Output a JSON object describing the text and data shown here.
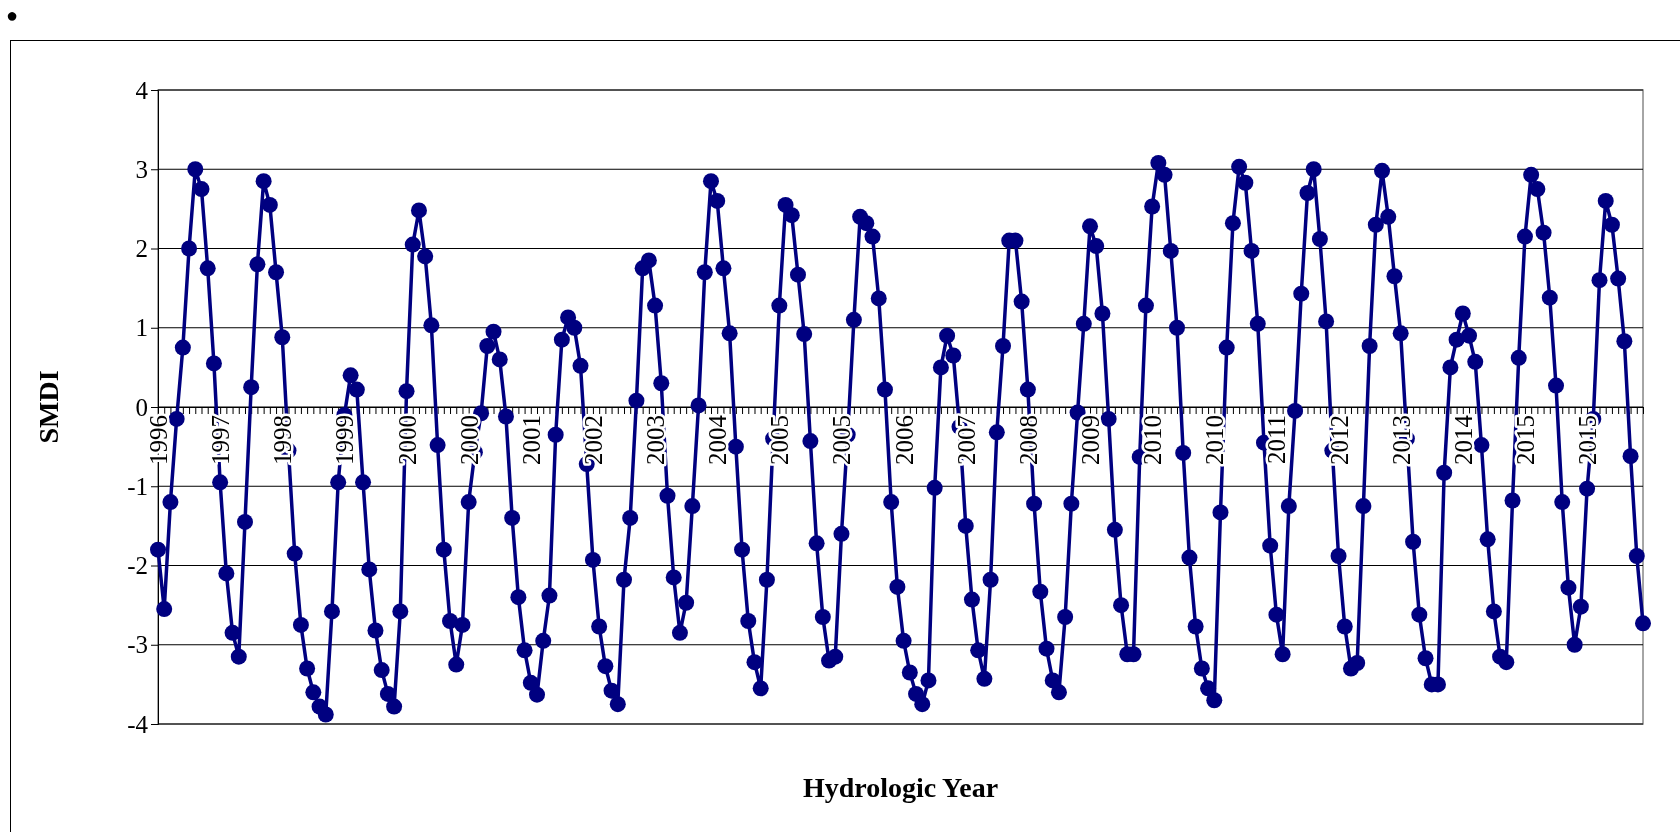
{
  "chart_data": {
    "type": "line",
    "xlabel": "Hydrologic Year",
    "ylabel": "SMDI",
    "annotations": [
      "●"
    ],
    "categories": [
      "1996",
      null,
      null,
      null,
      null,
      null,
      null,
      null,
      null,
      null,
      "1997",
      null,
      null,
      null,
      null,
      null,
      null,
      null,
      null,
      null,
      "1998",
      null,
      null,
      null,
      null,
      null,
      null,
      null,
      null,
      null,
      "1999",
      null,
      null,
      null,
      null,
      null,
      null,
      null,
      null,
      null,
      "2000",
      null,
      null,
      null,
      null,
      null,
      null,
      null,
      null,
      null,
      "2000",
      null,
      null,
      null,
      null,
      null,
      null,
      null,
      null,
      null,
      "2001",
      null,
      null,
      null,
      null,
      null,
      null,
      null,
      null,
      null,
      "2002",
      null,
      null,
      null,
      null,
      null,
      null,
      null,
      null,
      null,
      "2003",
      null,
      null,
      null,
      null,
      null,
      null,
      null,
      null,
      null,
      "2004",
      null,
      null,
      null,
      null,
      null,
      null,
      null,
      null,
      null,
      "2005",
      null,
      null,
      null,
      null,
      null,
      null,
      null,
      null,
      null,
      "2005",
      null,
      null,
      null,
      null,
      null,
      null,
      null,
      null,
      null,
      "2006",
      null,
      null,
      null,
      null,
      null,
      null,
      null,
      null,
      null,
      "2007",
      null,
      null,
      null,
      null,
      null,
      null,
      null,
      null,
      null,
      "2008",
      null,
      null,
      null,
      null,
      null,
      null,
      null,
      null,
      null,
      "2009",
      null,
      null,
      null,
      null,
      null,
      null,
      null,
      null,
      null,
      "2010",
      null,
      null,
      null,
      null,
      null,
      null,
      null,
      null,
      null,
      "2010",
      null,
      null,
      null,
      null,
      null,
      null,
      null,
      null,
      null,
      "2011",
      null,
      null,
      null,
      null,
      null,
      null,
      null,
      null,
      null,
      "2012",
      null,
      null,
      null,
      null,
      null,
      null,
      null,
      null,
      null,
      "2013",
      null,
      null,
      null,
      null,
      null,
      null,
      null,
      null,
      null,
      "2014",
      null,
      null,
      null,
      null,
      null,
      null,
      null,
      null,
      null,
      "2015",
      null,
      null,
      null,
      null,
      null,
      null,
      null,
      null,
      null,
      "2015",
      null,
      null,
      null,
      null,
      null,
      null,
      null,
      null,
      null
    ],
    "series": [
      {
        "color": "#000080",
        "values": [
          -1.8,
          -2.55,
          -1.2,
          -0.15,
          0.75,
          2.0,
          3.0,
          2.75,
          1.75,
          0.55,
          -0.95,
          -2.1,
          -2.85,
          -3.15,
          -1.45,
          0.25,
          1.8,
          2.85,
          2.55,
          1.7,
          0.88,
          -0.55,
          -1.85,
          -2.75,
          -3.3,
          -3.6,
          -3.78,
          -3.88,
          -2.58,
          -0.95,
          -0.1,
          0.4,
          0.22,
          -0.95,
          -2.05,
          -2.82,
          -3.32,
          -3.62,
          -3.78,
          -2.58,
          0.2,
          2.05,
          2.48,
          1.9,
          1.03,
          -0.48,
          -1.8,
          -2.7,
          -3.25,
          -2.75,
          -1.2,
          -0.57,
          -0.08,
          0.77,
          0.95,
          0.6,
          -0.12,
          -1.4,
          -2.4,
          -3.07,
          -3.48,
          -3.63,
          -2.95,
          -2.38,
          -0.35,
          0.85,
          1.13,
          1.0,
          0.52,
          -0.72,
          -1.93,
          -2.77,
          -3.27,
          -3.58,
          -3.75,
          -2.18,
          -1.4,
          0.08,
          1.75,
          1.85,
          1.28,
          0.3,
          -1.12,
          -2.15,
          -2.85,
          -2.47,
          -1.25,
          0.02,
          1.7,
          2.85,
          2.6,
          1.75,
          0.93,
          -0.5,
          -1.8,
          -2.7,
          -3.22,
          -3.55,
          -2.18,
          -0.4,
          1.28,
          2.55,
          2.42,
          1.67,
          0.92,
          -0.43,
          -1.72,
          -2.65,
          -3.2,
          -3.15,
          -1.6,
          -0.35,
          1.1,
          2.4,
          2.32,
          2.15,
          1.37,
          0.22,
          -1.2,
          -2.27,
          -2.95,
          -3.35,
          -3.62,
          -3.75,
          -3.45,
          -1.02,
          0.5,
          0.9,
          0.65,
          -0.25,
          -1.5,
          -2.43,
          -3.07,
          -3.43,
          -2.18,
          -0.32,
          0.77,
          2.1,
          2.1,
          1.33,
          0.22,
          -1.22,
          -2.33,
          -3.05,
          -3.45,
          -3.6,
          -2.65,
          -1.22,
          -0.07,
          1.05,
          2.28,
          2.03,
          1.18,
          -0.15,
          -1.55,
          -2.5,
          -3.12,
          -3.12,
          -0.63,
          1.28,
          2.53,
          3.08,
          2.93,
          1.97,
          1.0,
          -0.58,
          -1.9,
          -2.77,
          -3.3,
          -3.55,
          -3.7,
          -1.33,
          0.75,
          2.32,
          3.03,
          2.83,
          1.97,
          1.05,
          -0.45,
          -1.75,
          -2.62,
          -3.12,
          -1.25,
          -0.05,
          1.43,
          2.7,
          3.0,
          2.12,
          1.08,
          -0.55,
          -1.88,
          -2.77,
          -3.3,
          -3.23,
          -1.25,
          0.77,
          2.3,
          2.98,
          2.4,
          1.65,
          0.93,
          -0.4,
          -1.7,
          -2.62,
          -3.17,
          -3.5,
          -3.5,
          -0.83,
          0.5,
          0.85,
          1.18,
          0.9,
          0.57,
          -0.48,
          -1.67,
          -2.58,
          -3.15,
          -3.22,
          -1.18,
          0.62,
          2.15,
          2.93,
          2.75,
          2.2,
          1.38,
          0.27,
          -1.2,
          -2.28,
          -3.0,
          -2.52,
          -1.03,
          -0.15,
          1.6,
          2.6,
          2.3,
          1.62,
          0.83,
          -0.62,
          -1.88,
          -2.73
        ]
      }
    ],
    "ylim": [
      -4,
      4
    ],
    "yticks": [
      -4,
      -3,
      -2,
      -1,
      0,
      1,
      2,
      3,
      4
    ],
    "grid": "y",
    "marker": "circle",
    "line_style": "solid"
  }
}
